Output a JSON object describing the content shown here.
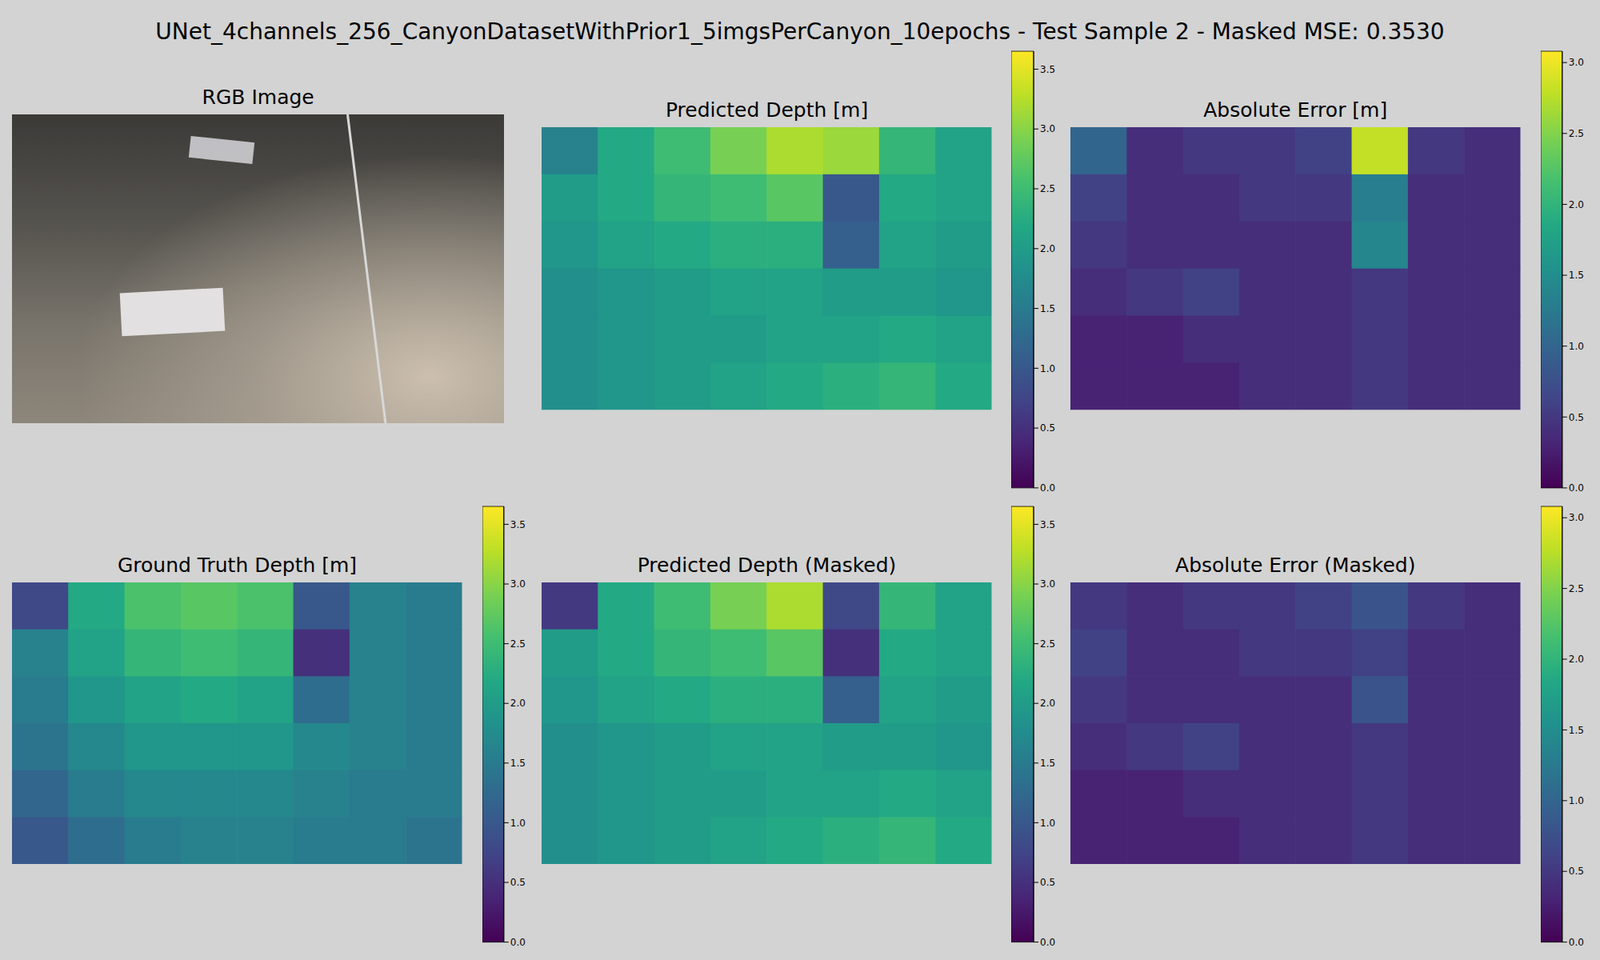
{
  "title": "UNet_4channels_256_CanyonDatasetWithPrior1_5imgsPerCanyon_10epochs - Test Sample 2 - Masked MSE: 0.3530",
  "chart_data": [
    {
      "type": "image",
      "title": "RGB Image"
    },
    {
      "type": "heatmap",
      "title": "Predicted Depth [m]",
      "tick_labels": false,
      "cells": [
        [
          1.6,
          2.2,
          2.5,
          2.9,
          3.2,
          3.1,
          2.4,
          2.1
        ],
        [
          2.0,
          2.2,
          2.4,
          2.5,
          2.7,
          1.0,
          2.2,
          2.1
        ],
        [
          1.9,
          2.1,
          2.2,
          2.3,
          2.3,
          1.1,
          2.1,
          2.0
        ],
        [
          1.8,
          1.9,
          2.0,
          2.1,
          2.1,
          2.0,
          2.0,
          1.9
        ],
        [
          1.8,
          1.9,
          2.0,
          2.0,
          2.1,
          2.1,
          2.2,
          2.1
        ],
        [
          1.8,
          1.9,
          2.0,
          2.1,
          2.2,
          2.3,
          2.4,
          2.2
        ]
      ],
      "colorbar": {
        "range": [
          0,
          3.65
        ],
        "ticks": [
          {
            "value": 0,
            "label": "0.0"
          },
          0.5,
          {
            "value": 1,
            "label": "1.0"
          },
          1.5,
          {
            "value": 2,
            "label": "2.0"
          },
          2.5,
          {
            "value": 3,
            "label": "3.0"
          },
          3.5
        ]
      }
    },
    {
      "type": "heatmap",
      "title": "Absolute Error [m]",
      "tick_labels": false,
      "cells": [
        [
          1.0,
          0.4,
          0.5,
          0.5,
          0.6,
          2.8,
          0.5,
          0.4
        ],
        [
          0.6,
          0.4,
          0.4,
          0.5,
          0.5,
          1.3,
          0.4,
          0.4
        ],
        [
          0.5,
          0.4,
          0.4,
          0.4,
          0.4,
          1.4,
          0.4,
          0.4
        ],
        [
          0.4,
          0.5,
          0.6,
          0.4,
          0.4,
          0.5,
          0.4,
          0.4
        ],
        [
          0.3,
          0.3,
          0.4,
          0.4,
          0.4,
          0.5,
          0.4,
          0.4
        ],
        [
          0.3,
          0.3,
          0.3,
          0.4,
          0.4,
          0.5,
          0.4,
          0.4
        ]
      ],
      "colorbar": {
        "range": [
          0,
          3.08
        ],
        "ticks": [
          {
            "value": 0,
            "label": "0.0"
          },
          0.5,
          {
            "value": 1,
            "label": "1.0"
          },
          1.5,
          {
            "value": 2,
            "label": "2.0"
          },
          2.5,
          {
            "value": 3,
            "label": "3.0"
          }
        ]
      }
    },
    {
      "type": "heatmap",
      "title": "Ground Truth Depth [m]",
      "tick_labels": false,
      "cells": [
        [
          0.8,
          2.2,
          2.6,
          2.7,
          2.6,
          1.0,
          1.6,
          1.5
        ],
        [
          1.6,
          2.1,
          2.4,
          2.5,
          2.4,
          0.5,
          1.6,
          1.5
        ],
        [
          1.5,
          1.9,
          2.1,
          2.2,
          2.1,
          1.3,
          1.6,
          1.5
        ],
        [
          1.4,
          1.7,
          1.9,
          1.9,
          1.9,
          1.7,
          1.6,
          1.5
        ],
        [
          1.2,
          1.5,
          1.7,
          1.7,
          1.7,
          1.6,
          1.5,
          1.5
        ],
        [
          1.0,
          1.3,
          1.5,
          1.6,
          1.6,
          1.5,
          1.5,
          1.4
        ]
      ],
      "colorbar": {
        "range": [
          0,
          3.65
        ],
        "ticks": [
          {
            "value": 0,
            "label": "0.0"
          },
          0.5,
          {
            "value": 1,
            "label": "1.0"
          },
          1.5,
          {
            "value": 2,
            "label": "2.0"
          },
          2.5,
          {
            "value": 3,
            "label": "3.0"
          },
          3.5
        ]
      }
    },
    {
      "type": "heatmap",
      "title": "Predicted Depth (Masked)",
      "tick_labels": false,
      "cells": [
        [
          0.6,
          2.2,
          2.5,
          2.9,
          3.2,
          0.8,
          2.4,
          2.1
        ],
        [
          2.0,
          2.2,
          2.4,
          2.5,
          2.7,
          0.5,
          2.2,
          2.1
        ],
        [
          1.9,
          2.1,
          2.2,
          2.3,
          2.3,
          1.1,
          2.1,
          2.0
        ],
        [
          1.8,
          1.9,
          2.0,
          2.1,
          2.1,
          2.0,
          2.0,
          1.9
        ],
        [
          1.8,
          1.9,
          2.0,
          2.0,
          2.1,
          2.1,
          2.2,
          2.1
        ],
        [
          1.8,
          1.9,
          2.0,
          2.1,
          2.2,
          2.3,
          2.4,
          2.2
        ]
      ],
      "colorbar": {
        "range": [
          0,
          3.65
        ],
        "ticks": [
          {
            "value": 0,
            "label": "0.0"
          },
          0.5,
          {
            "value": 1,
            "label": "1.0"
          },
          1.5,
          {
            "value": 2,
            "label": "2.0"
          },
          2.5,
          {
            "value": 3,
            "label": "3.0"
          },
          3.5
        ]
      }
    },
    {
      "type": "heatmap",
      "title": "Absolute Error (Masked)",
      "tick_labels": false,
      "cells": [
        [
          0.5,
          0.4,
          0.5,
          0.5,
          0.6,
          0.8,
          0.5,
          0.4
        ],
        [
          0.6,
          0.4,
          0.4,
          0.5,
          0.5,
          0.6,
          0.4,
          0.4
        ],
        [
          0.5,
          0.4,
          0.4,
          0.4,
          0.4,
          0.8,
          0.4,
          0.4
        ],
        [
          0.4,
          0.5,
          0.6,
          0.4,
          0.4,
          0.5,
          0.4,
          0.4
        ],
        [
          0.3,
          0.3,
          0.4,
          0.4,
          0.4,
          0.5,
          0.4,
          0.4
        ],
        [
          0.3,
          0.3,
          0.3,
          0.4,
          0.4,
          0.5,
          0.4,
          0.4
        ]
      ],
      "colorbar": {
        "range": [
          0,
          3.08
        ],
        "ticks": [
          {
            "value": 0,
            "label": "0.0"
          },
          0.5,
          {
            "value": 1,
            "label": "1.0"
          },
          1.5,
          {
            "value": 2,
            "label": "2.0"
          },
          2.5,
          {
            "value": 3,
            "label": "3.0"
          }
        ]
      }
    }
  ]
}
